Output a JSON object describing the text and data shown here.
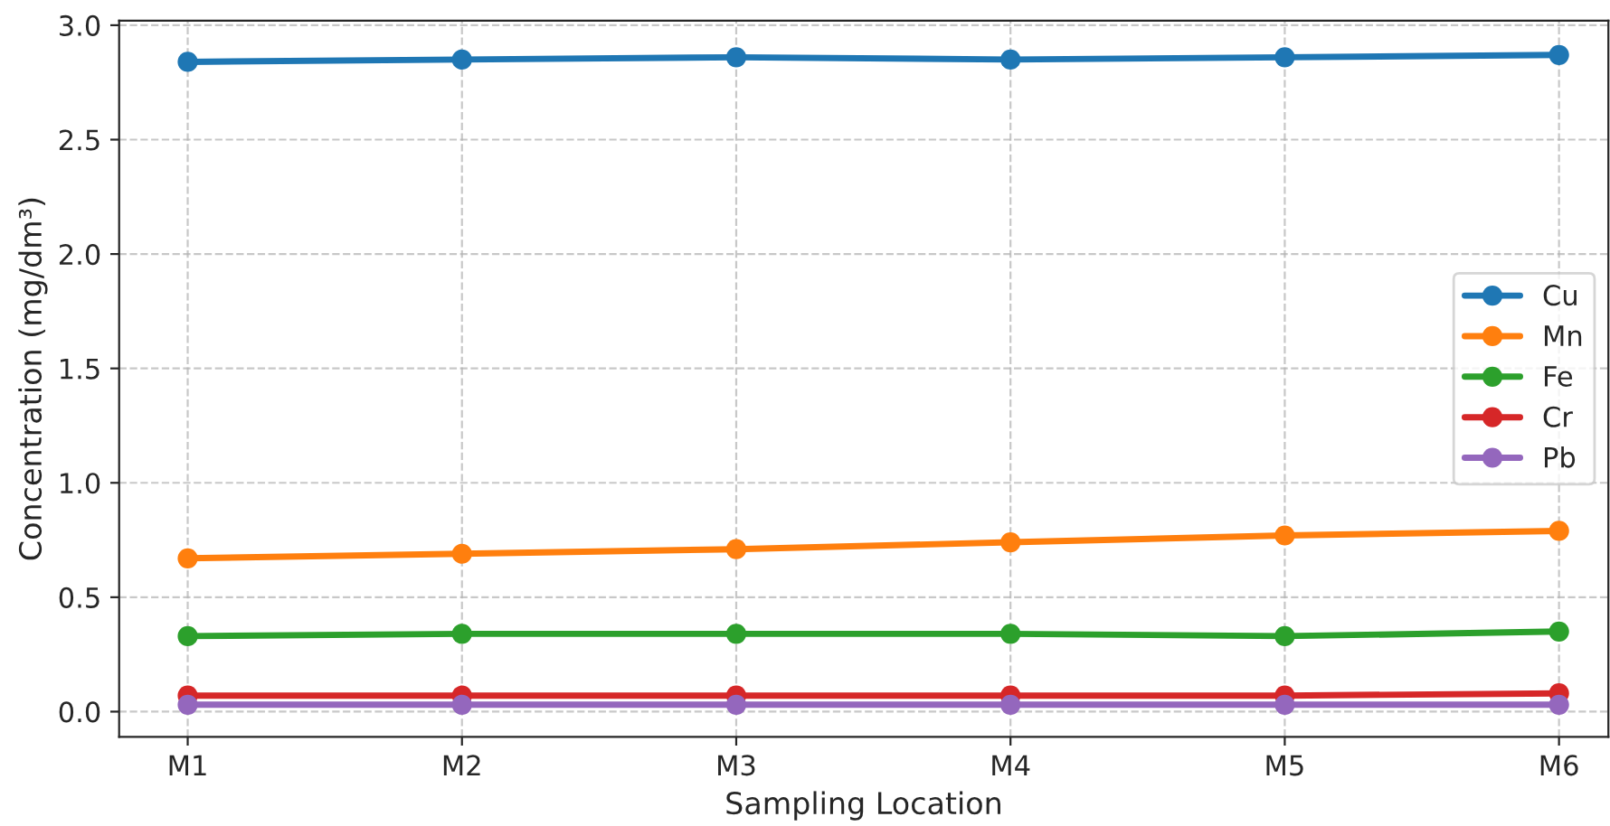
{
  "chart_data": {
    "type": "line",
    "xlabel": "Sampling Location",
    "ylabel": "Concentration (mg/dm³)",
    "categories": [
      "M1",
      "M2",
      "M3",
      "M4",
      "M5",
      "M6"
    ],
    "series": [
      {
        "name": "Cu",
        "color": "#1f77b4",
        "values": [
          2.84,
          2.85,
          2.86,
          2.85,
          2.86,
          2.87
        ]
      },
      {
        "name": "Mn",
        "color": "#ff7f0e",
        "values": [
          0.67,
          0.69,
          0.71,
          0.74,
          0.77,
          0.79
        ]
      },
      {
        "name": "Fe",
        "color": "#2ca02c",
        "values": [
          0.33,
          0.34,
          0.34,
          0.34,
          0.33,
          0.35
        ]
      },
      {
        "name": "Cr",
        "color": "#d62728",
        "values": [
          0.07,
          0.07,
          0.07,
          0.07,
          0.07,
          0.08
        ]
      },
      {
        "name": "Pb",
        "color": "#9467bd",
        "values": [
          0.03,
          0.03,
          0.03,
          0.03,
          0.03,
          0.03
        ]
      }
    ],
    "ylim": [
      -0.11,
      3.02
    ],
    "yticks": [
      {
        "value": 0,
        "label": "0.0"
      },
      {
        "value": 0.5,
        "label": "0.5"
      },
      {
        "value": 1,
        "label": "1.0"
      },
      {
        "value": 1.5,
        "label": "1.5"
      },
      {
        "value": 2,
        "label": "2.0"
      },
      {
        "value": 2.5,
        "label": "2.5"
      },
      {
        "value": 3,
        "label": "3.0"
      }
    ],
    "grid": true,
    "legend": "right",
    "marker": "circle",
    "line_style": "solid"
  }
}
